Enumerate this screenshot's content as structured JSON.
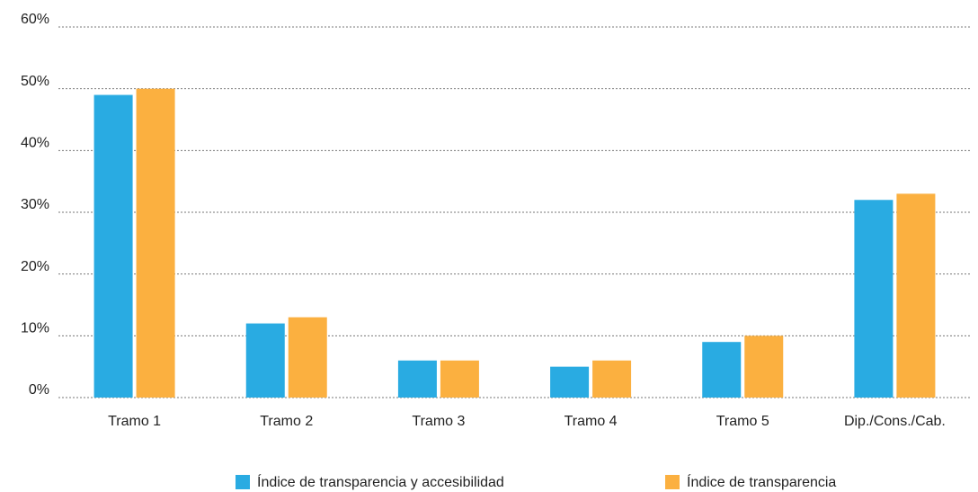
{
  "chart_data": {
    "type": "bar",
    "categories": [
      "Tramo 1",
      "Tramo 2",
      "Tramo 3",
      "Tramo 4",
      "Tramo 5",
      "Dip./Cons./Cab."
    ],
    "series": [
      {
        "name": "Índice de transparencia y accesibilidad",
        "color": "#29abe2",
        "values": [
          49,
          12,
          6,
          5,
          9,
          32
        ]
      },
      {
        "name": "Índice de transparencia",
        "color": "#fbb040",
        "values": [
          50,
          13,
          6,
          6,
          10,
          33
        ]
      }
    ],
    "ylim": [
      0,
      60
    ],
    "yticks": [
      {
        "value": 0,
        "label": "0%"
      },
      {
        "value": 10,
        "label": "10%"
      },
      {
        "value": 20,
        "label": "20%"
      },
      {
        "value": 30,
        "label": "30%"
      },
      {
        "value": 40,
        "label": "40%"
      },
      {
        "value": 50,
        "label": "50%"
      },
      {
        "value": 60,
        "label": "60%"
      }
    ],
    "grid": true,
    "legend": "bottom"
  }
}
